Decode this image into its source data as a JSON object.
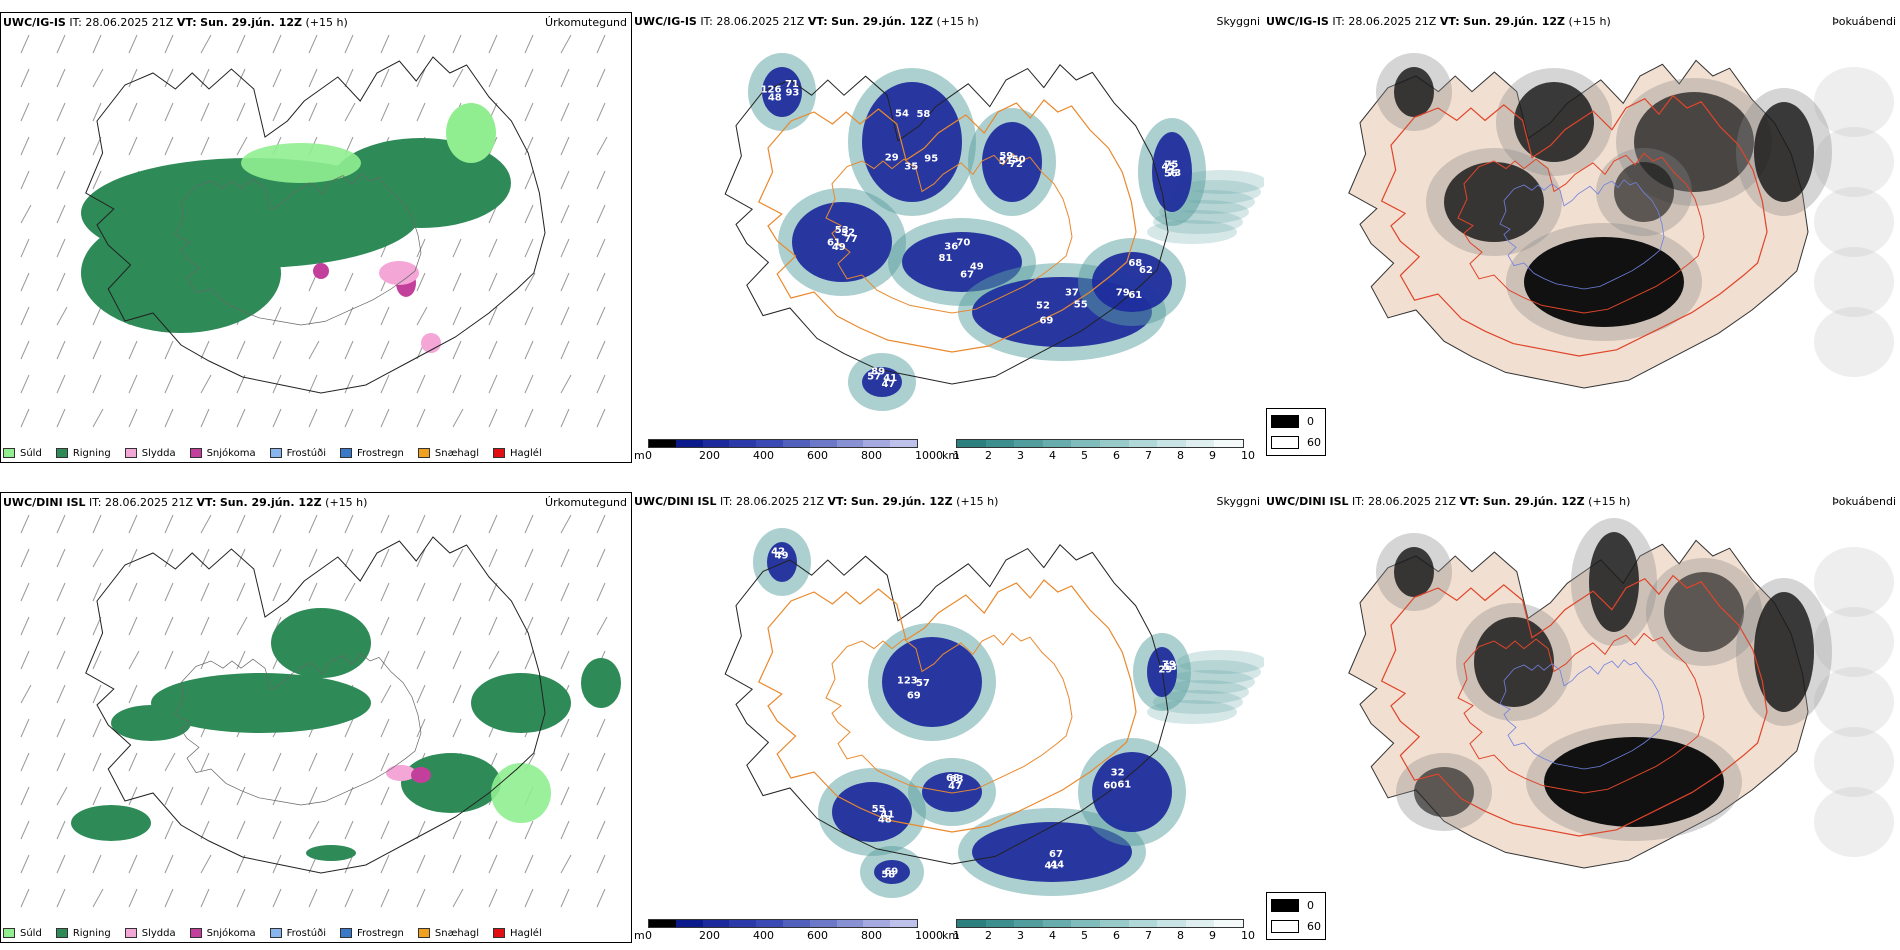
{
  "rows": [
    {
      "model": "UWC/IG-IS",
      "it_label": "IT:",
      "it_value": "28.06.2025 21Z",
      "vt_label": "VT:",
      "vt_value": "Sun. 29.jún. 12Z",
      "lead": "(+15 h)"
    },
    {
      "model": "UWC/DINI ISL",
      "it_label": "IT:",
      "it_value": "28.06.2025 21Z",
      "vt_label": "VT:",
      "vt_value": "Sun. 29.jún. 12Z",
      "lead": "(+15 h)"
    }
  ],
  "panels": {
    "precip_label": "Úrkomutegund",
    "cloud_label": "Skyggni",
    "dew_label": "Þokuábendi"
  },
  "precip_legend": [
    {
      "label": "Súld",
      "color": "#90ee90"
    },
    {
      "label": "Rigning",
      "color": "#2e8b57"
    },
    {
      "label": "Slydda",
      "color": "#f4a6d7"
    },
    {
      "label": "Snjókoma",
      "color": "#c2409c"
    },
    {
      "label": "Frostúði",
      "color": "#87b6ee"
    },
    {
      "label": "Frostregn",
      "color": "#3a78c9"
    },
    {
      "label": "Snæhagl",
      "color": "#f0a020"
    },
    {
      "label": "Haglél",
      "color": "#e01010"
    }
  ],
  "cbar_m": {
    "unit": "m",
    "ticks": [
      "0",
      "200",
      "400",
      "600",
      "800",
      "1000"
    ],
    "colors": [
      "#000000",
      "#0b1a8a",
      "#1c2a9c",
      "#2b3aa8",
      "#3a49b4",
      "#5260bd",
      "#6c79c8",
      "#8891d3",
      "#a4aadf",
      "#bec2ea"
    ]
  },
  "cbar_km": {
    "unit": "km",
    "ticks": [
      "1",
      "2",
      "3",
      "4",
      "5",
      "6",
      "7",
      "8",
      "9",
      "10"
    ],
    "colors": [
      "#2b7f7f",
      "#3d8f8f",
      "#529e9e",
      "#68adad",
      "#80bcbc",
      "#98caca",
      "#b0d8d8",
      "#c8e4e4",
      "#dfeeee",
      "#f4fafa"
    ]
  },
  "dew_legend": [
    {
      "label": "0",
      "color": "#000000"
    },
    {
      "label": "60",
      "color": "#ffffff"
    }
  ],
  "cloud_values_top": [
    "77",
    "29",
    "70",
    "72",
    "52",
    "62",
    "56",
    "89",
    "93",
    "61",
    "58",
    "67",
    "59",
    "55",
    "79",
    "75",
    "47",
    "126",
    "52",
    "35",
    "36",
    "50",
    "69",
    "68",
    "73",
    "57",
    "71",
    "49",
    "54",
    "49",
    "51",
    "37",
    "61",
    "45",
    "41",
    "48",
    "53",
    "95",
    "81"
  ],
  "cloud_values_bottom": [
    "55",
    "69",
    "68",
    "67",
    "60",
    "79",
    "69",
    "42",
    "41",
    "57",
    "63",
    "44",
    "61",
    "53",
    "58",
    "49",
    "48",
    "123",
    "47",
    "41",
    "32",
    "29"
  ],
  "colors": {
    "rain": "#2e8b57",
    "drizzle": "#90ee90",
    "sleet": "#f4a6d7",
    "snow": "#c2409c",
    "cloud_low": "#1c2a9c",
    "vis_low": "#5aa0a0",
    "roads": "#e8892e",
    "dew_land": "#f1dfd1",
    "dew_roads": "#e0442a",
    "rivers": "#7080e0"
  }
}
